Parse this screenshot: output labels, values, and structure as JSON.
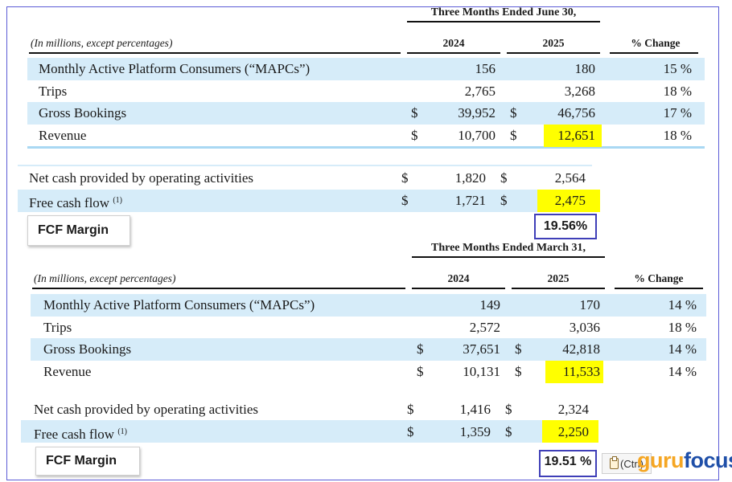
{
  "q2": {
    "period_title": "Three Months Ended June 30,",
    "caption": "(In millions, except percentages)",
    "col_a": "2024",
    "col_b": "2025",
    "col_c": "% Change",
    "rows": [
      {
        "label": "Monthly Active Platform Consumers (“MAPCs”)",
        "cur_a": "",
        "a": "156",
        "cur_b": "",
        "b": "180",
        "pct": "15 %"
      },
      {
        "label": "Trips",
        "cur_a": "",
        "a": "2,765",
        "cur_b": "",
        "b": "3,268",
        "pct": "18 %"
      },
      {
        "label": "Gross Bookings",
        "cur_a": "$",
        "a": "39,952",
        "cur_b": "$",
        "b": "46,756",
        "pct": "17 %"
      },
      {
        "label": "Revenue",
        "cur_a": "$",
        "a": "10,700",
        "cur_b": "$",
        "b": "12,651",
        "pct": "18 %"
      }
    ],
    "cash_rows": [
      {
        "label": "Net cash provided by operating activities",
        "sup": "",
        "cur_a": "$",
        "a": "1,820",
        "cur_b": "$",
        "b": "2,564"
      },
      {
        "label": "Free cash flow",
        "sup": "(1)",
        "cur_a": "$",
        "a": "1,721",
        "cur_b": "$",
        "b": "2,475"
      }
    ],
    "fcf_label": "FCF Margin",
    "fcf_value": "19.56%"
  },
  "q1": {
    "period_title": "Three Months Ended March 31,",
    "caption": "(In millions, except percentages)",
    "col_a": "2024",
    "col_b": "2025",
    "col_c": "% Change",
    "rows": [
      {
        "label": "Monthly Active Platform Consumers (“MAPCs”)",
        "cur_a": "",
        "a": "149",
        "cur_b": "",
        "b": "170",
        "pct": "14 %"
      },
      {
        "label": "Trips",
        "cur_a": "",
        "a": "2,572",
        "cur_b": "",
        "b": "3,036",
        "pct": "18 %"
      },
      {
        "label": "Gross Bookings",
        "cur_a": "$",
        "a": "37,651",
        "cur_b": "$",
        "b": "42,818",
        "pct": "14 %"
      },
      {
        "label": "Revenue",
        "cur_a": "$",
        "a": "10,131",
        "cur_b": "$",
        "b": "11,533",
        "pct": "14 %"
      }
    ],
    "cash_rows": [
      {
        "label": "Net cash provided by operating activities",
        "sup": "",
        "cur_a": "$",
        "a": "1,416",
        "cur_b": "$",
        "b": "2,324"
      },
      {
        "label": "Free cash flow",
        "sup": "(1)",
        "cur_a": "$",
        "a": "1,359",
        "cur_b": "$",
        "b": "2,250"
      }
    ],
    "fcf_label": "FCF Margin",
    "fcf_value": "19.51 %"
  },
  "overlay": {
    "paste_label": "(Ctrl)",
    "paste_icon": "clipboard-icon",
    "logo_part1": "guru",
    "logo_part2": "focus"
  },
  "colors": {
    "band": "#d6ecf9",
    "highlight": "#ffff00",
    "frame": "#5b5bd6",
    "logo_orange": "#f5a623",
    "logo_blue": "#1f4fa8"
  }
}
